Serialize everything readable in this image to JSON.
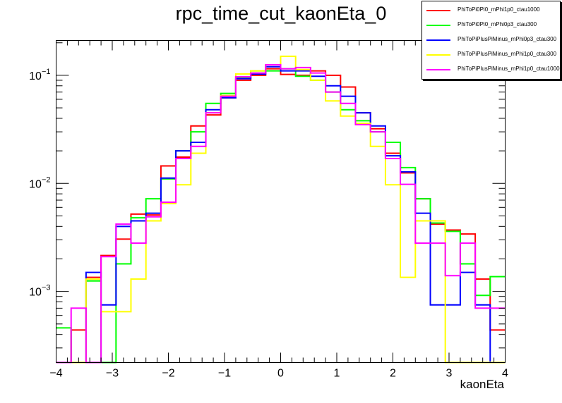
{
  "chart_data": {
    "type": "line",
    "title": "rpc_time_cut_kaonEta_0",
    "xlabel": "kaonEta",
    "ylabel": "",
    "xlim": [
      -4,
      4
    ],
    "ylim": [
      0.00022,
      0.21
    ],
    "yscale": "log",
    "grid": false,
    "legend_position": "top-right",
    "bin_edges": [
      -4.0,
      -3.733,
      -3.467,
      -3.2,
      -2.933,
      -2.667,
      -2.4,
      -2.133,
      -1.867,
      -1.6,
      -1.333,
      -1.067,
      -0.8,
      -0.533,
      -0.267,
      0.0,
      0.267,
      0.533,
      0.8,
      1.067,
      1.333,
      1.6,
      1.867,
      2.133,
      2.4,
      2.667,
      2.933,
      3.2,
      3.467,
      3.733,
      4.0
    ],
    "x_ticks": [
      -4,
      -3,
      -2,
      -1,
      0,
      1,
      2,
      3,
      4
    ],
    "x_tick_labels": [
      "−4",
      "−3",
      "−2",
      "−1",
      "0",
      "1",
      "2",
      "3",
      "4"
    ],
    "y_ticks": [
      0.001,
      0.01,
      0.1
    ],
    "y_tick_labels": [
      {
        "base": "10",
        "exp": "−3"
      },
      {
        "base": "10",
        "exp": "−2"
      },
      {
        "base": "10",
        "exp": "−1"
      }
    ],
    "series": [
      {
        "name": "PhiToPi0Pi0_mPhi1p0_ctau1000",
        "color": "#ff0000",
        "values": [
          0,
          0.00044,
          0.00135,
          0.00215,
          0.00305,
          0.0052,
          0.0051,
          0.0145,
          0.0175,
          0.034,
          0.043,
          0.062,
          0.09,
          0.1,
          0.115,
          0.102,
          0.1,
          0.11,
          0.1,
          0.078,
          0.045,
          0.032,
          0.019,
          0.0125,
          0.0072,
          0.0042,
          0.0037,
          0.0034,
          0.0013,
          0.00044
        ]
      },
      {
        "name": "PhiToPi0Pi0_mPhi0p3_ctau300",
        "color": "#00ff00",
        "values": [
          0.00046,
          0,
          0.00125,
          0,
          0.0018,
          0.0048,
          0.0072,
          0.011,
          0.02,
          0.03,
          0.055,
          0.068,
          0.095,
          0.11,
          0.11,
          0.115,
          0.098,
          0.09,
          0.07,
          0.048,
          0.038,
          0.03,
          0.024,
          0.014,
          0.0072,
          0.0043,
          0.0036,
          0.0018,
          0.00092,
          0.00137
        ]
      },
      {
        "name": "PhiToPiPlusPiMinus_mPhi0p3_ctau300",
        "color": "#0000ff",
        "values": [
          0,
          0,
          0.0015,
          0.00075,
          0.004,
          0.0045,
          0.0053,
          0.0112,
          0.02,
          0.024,
          0.048,
          0.062,
          0.093,
          0.103,
          0.12,
          0.11,
          0.11,
          0.098,
          0.08,
          0.064,
          0.045,
          0.034,
          0.018,
          0.0128,
          0.0053,
          0.00075,
          0.00075,
          0.0015,
          0.00075,
          0
        ]
      },
      {
        "name": "PhiToPiPlusPiMinus_mPhi1p0_ctau300",
        "color": "#ffff00",
        "values": [
          0,
          0,
          0.0013,
          0.00065,
          0.00065,
          0.0013,
          0.0045,
          0.0065,
          0.0097,
          0.019,
          0.045,
          0.065,
          0.103,
          0.11,
          0.125,
          0.15,
          0.113,
          0.09,
          0.058,
          0.042,
          0.036,
          0.022,
          0.0097,
          0.00135,
          0.0045,
          0.0045,
          0,
          0,
          0,
          0
        ]
      },
      {
        "name": "PhiToPiPlusPiMinus_mPhi1p0_ctau1000",
        "color": "#ff00ff",
        "values": [
          0,
          0.0007,
          0,
          0.0021,
          0.0042,
          0.0028,
          0.0049,
          0.0067,
          0.017,
          0.022,
          0.045,
          0.064,
          0.097,
          0.105,
          0.125,
          0.115,
          0.118,
          0.105,
          0.07,
          0.055,
          0.035,
          0.03,
          0.017,
          0.0098,
          0.0028,
          0.0028,
          0.0014,
          0.0028,
          0.0007,
          0.0007
        ]
      }
    ]
  }
}
